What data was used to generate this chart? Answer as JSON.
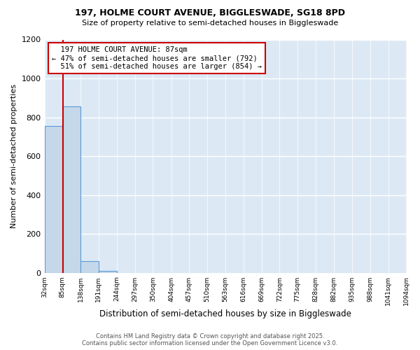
{
  "title": "197, HOLME COURT AVENUE, BIGGLESWADE, SG18 8PD",
  "subtitle": "Size of property relative to semi-detached houses in Biggleswade",
  "xlabel": "Distribution of semi-detached houses by size in Biggleswade",
  "ylabel": "Number of semi-detached properties",
  "bins": [
    32,
    85,
    138,
    191,
    244,
    297,
    350,
    404,
    457,
    510,
    563,
    616,
    669,
    722,
    775,
    828,
    882,
    935,
    988,
    1041,
    1094
  ],
  "counts": [
    755,
    855,
    60,
    10,
    0,
    0,
    0,
    0,
    0,
    0,
    0,
    0,
    0,
    0,
    0,
    0,
    0,
    0,
    0,
    0
  ],
  "bar_color": "#c5d8ea",
  "bar_edge_color": "#5b9bd5",
  "property_size": 87,
  "property_label": "197 HOLME COURT AVENUE: 87sqm",
  "pct_smaller": 47,
  "pct_smaller_count": 792,
  "pct_larger": 51,
  "pct_larger_count": 854,
  "vline_color": "#cc0000",
  "annotation_box_color": "#cc0000",
  "ylim": [
    0,
    1200
  ],
  "yticks": [
    0,
    200,
    400,
    600,
    800,
    1000,
    1200
  ],
  "bg_color": "#dce9f5",
  "grid_color": "#ffffff",
  "footer_line1": "Contains HM Land Registry data © Crown copyright and database right 2025.",
  "footer_line2": "Contains public sector information licensed under the Open Government Licence v3.0."
}
